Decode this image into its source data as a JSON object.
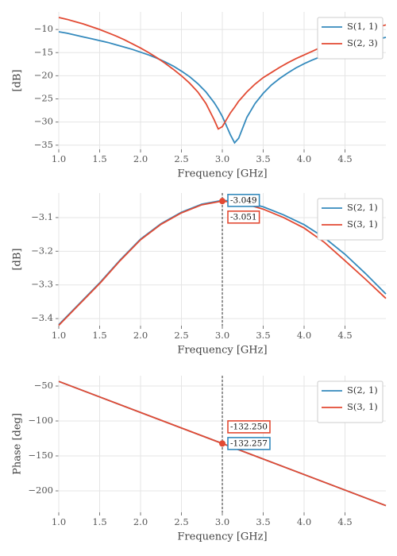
{
  "chart_data": [
    {
      "type": "line",
      "xlabel": "Frequency [GHz]",
      "ylabel": "[dB]",
      "xlim": [
        1.0,
        5.0
      ],
      "ylim": [
        -35.9,
        -6.2
      ],
      "xticks": [
        {
          "value": 1.0,
          "label": "1.0"
        },
        {
          "value": 1.5,
          "label": "1.5"
        },
        {
          "value": 2.0,
          "label": "2.0"
        },
        {
          "value": 2.5,
          "label": "2.5"
        },
        {
          "value": 3.0,
          "label": "3.0"
        },
        {
          "value": 3.5,
          "label": "3.5"
        },
        {
          "value": 4.0,
          "label": "4.0"
        },
        {
          "value": 4.5,
          "label": "4.5"
        }
      ],
      "yticks": [
        {
          "value": -10,
          "label": "−10"
        },
        {
          "value": -15,
          "label": "−15"
        },
        {
          "value": -20,
          "label": "−20"
        },
        {
          "value": -25,
          "label": "−25"
        },
        {
          "value": -30,
          "label": "−30"
        },
        {
          "value": -35,
          "label": "−35"
        }
      ],
      "grid": true,
      "legend": "upper right",
      "x": [
        1.0,
        1.1,
        1.2,
        1.3,
        1.4,
        1.5,
        1.6,
        1.7,
        1.8,
        1.9,
        2.0,
        2.1,
        2.2,
        2.3,
        2.4,
        2.5,
        2.6,
        2.7,
        2.8,
        2.9,
        2.95,
        3.0,
        3.1,
        3.15,
        3.2,
        3.3,
        3.4,
        3.5,
        3.6,
        3.7,
        3.8,
        3.9,
        4.0,
        4.1,
        4.2,
        4.3,
        4.4,
        4.5,
        4.6,
        4.7,
        4.8,
        4.9,
        5.0
      ],
      "series": [
        {
          "name": "S(1, 1)",
          "color": "#348abd",
          "values": [
            -10.5,
            -10.8,
            -11.2,
            -11.6,
            -12.0,
            -12.4,
            -12.8,
            -13.3,
            -13.8,
            -14.3,
            -14.9,
            -15.5,
            -16.2,
            -17.0,
            -17.9,
            -19.0,
            -20.2,
            -21.7,
            -23.5,
            -25.8,
            -27.2,
            -28.8,
            -32.8,
            -34.5,
            -33.5,
            -29.0,
            -26.0,
            -23.8,
            -22.0,
            -20.6,
            -19.4,
            -18.3,
            -17.4,
            -16.6,
            -15.9,
            -15.2,
            -14.6,
            -14.0,
            -13.5,
            -13.0,
            -12.5,
            -12.1,
            -11.7
          ]
        },
        {
          "name": "S(2, 3)",
          "color": "#e24a33",
          "values": [
            -7.4,
            -7.8,
            -8.3,
            -8.8,
            -9.4,
            -10.0,
            -10.7,
            -11.4,
            -12.2,
            -13.1,
            -14.0,
            -15.0,
            -16.1,
            -17.3,
            -18.6,
            -20.0,
            -21.6,
            -23.5,
            -26.0,
            -29.5,
            -31.5,
            -31.0,
            -28.0,
            -26.8,
            -25.5,
            -23.5,
            -21.8,
            -20.4,
            -19.3,
            -18.2,
            -17.2,
            -16.3,
            -15.5,
            -14.7,
            -13.9,
            -13.2,
            -12.5,
            -11.8,
            -11.2,
            -10.6,
            -10.0,
            -9.5,
            -9.0
          ]
        }
      ]
    },
    {
      "type": "line",
      "xlabel": "Frequency [GHz]",
      "ylabel": "[dB]",
      "xlim": [
        1.0,
        5.0
      ],
      "ylim": [
        -3.421,
        -3.027
      ],
      "xticks": [
        {
          "value": 1.0,
          "label": "1.0"
        },
        {
          "value": 1.5,
          "label": "1.5"
        },
        {
          "value": 2.0,
          "label": "2.0"
        },
        {
          "value": 2.5,
          "label": "2.5"
        },
        {
          "value": 3.0,
          "label": "3.0"
        },
        {
          "value": 3.5,
          "label": "3.5"
        },
        {
          "value": 4.0,
          "label": "4.0"
        },
        {
          "value": 4.5,
          "label": "4.5"
        }
      ],
      "yticks": [
        {
          "value": -3.1,
          "label": "−3.1"
        },
        {
          "value": -3.2,
          "label": "−3.2"
        },
        {
          "value": -3.3,
          "label": "−3.3"
        },
        {
          "value": -3.4,
          "label": "−3.4"
        }
      ],
      "grid": true,
      "legend": "upper right",
      "cursor_x": 3.0,
      "x": [
        1.0,
        1.25,
        1.5,
        1.75,
        2.0,
        2.25,
        2.5,
        2.75,
        3.0,
        3.25,
        3.5,
        3.75,
        4.0,
        4.25,
        4.5,
        4.75,
        5.0
      ],
      "series": [
        {
          "name": "S(2, 1)",
          "color": "#348abd",
          "values": [
            -3.418,
            -3.356,
            -3.294,
            -3.226,
            -3.164,
            -3.118,
            -3.084,
            -3.06,
            -3.049,
            -3.053,
            -3.068,
            -3.092,
            -3.121,
            -3.16,
            -3.209,
            -3.266,
            -3.327
          ]
        },
        {
          "name": "S(3, 1)",
          "color": "#e24a33",
          "values": [
            -3.42,
            -3.358,
            -3.296,
            -3.228,
            -3.166,
            -3.12,
            -3.086,
            -3.062,
            -3.051,
            -3.057,
            -3.075,
            -3.1,
            -3.131,
            -3.174,
            -3.228,
            -3.283,
            -3.34
          ]
        }
      ],
      "annotations": [
        {
          "value": -3.049,
          "label": "-3.049",
          "color": "#348abd"
        },
        {
          "value": -3.051,
          "label": "-3.051",
          "color": "#e24a33"
        }
      ]
    },
    {
      "type": "line",
      "xlabel": "Frequency [GHz]",
      "ylabel": "Phase [deg]",
      "xlim": [
        1.0,
        5.0
      ],
      "ylim": [
        -230.7,
        -35.2
      ],
      "xticks": [
        {
          "value": 1.0,
          "label": "1.0"
        },
        {
          "value": 1.5,
          "label": "1.5"
        },
        {
          "value": 2.0,
          "label": "2.0"
        },
        {
          "value": 2.5,
          "label": "2.5"
        },
        {
          "value": 3.0,
          "label": "3.0"
        },
        {
          "value": 3.5,
          "label": "3.5"
        },
        {
          "value": 4.0,
          "label": "4.0"
        },
        {
          "value": 4.5,
          "label": "4.5"
        }
      ],
      "yticks": [
        {
          "value": -50,
          "label": "−50"
        },
        {
          "value": -100,
          "label": "−100"
        },
        {
          "value": -150,
          "label": "−150"
        },
        {
          "value": -200,
          "label": "−200"
        }
      ],
      "grid": true,
      "legend": "upper right",
      "cursor_x": 3.0,
      "x": [
        1.0,
        3.0,
        5.0
      ],
      "series": [
        {
          "name": "S(2, 1)",
          "color": "#348abd",
          "values": [
            -43.4,
            -132.257,
            -221.1
          ]
        },
        {
          "name": "S(3, 1)",
          "color": "#e24a33",
          "values": [
            -43.4,
            -132.25,
            -221.1
          ]
        }
      ],
      "annotations": [
        {
          "value": -132.25,
          "label": "-132.250",
          "color": "#e24a33"
        },
        {
          "value": -132.257,
          "label": "-132.257",
          "color": "#348abd"
        }
      ]
    }
  ]
}
